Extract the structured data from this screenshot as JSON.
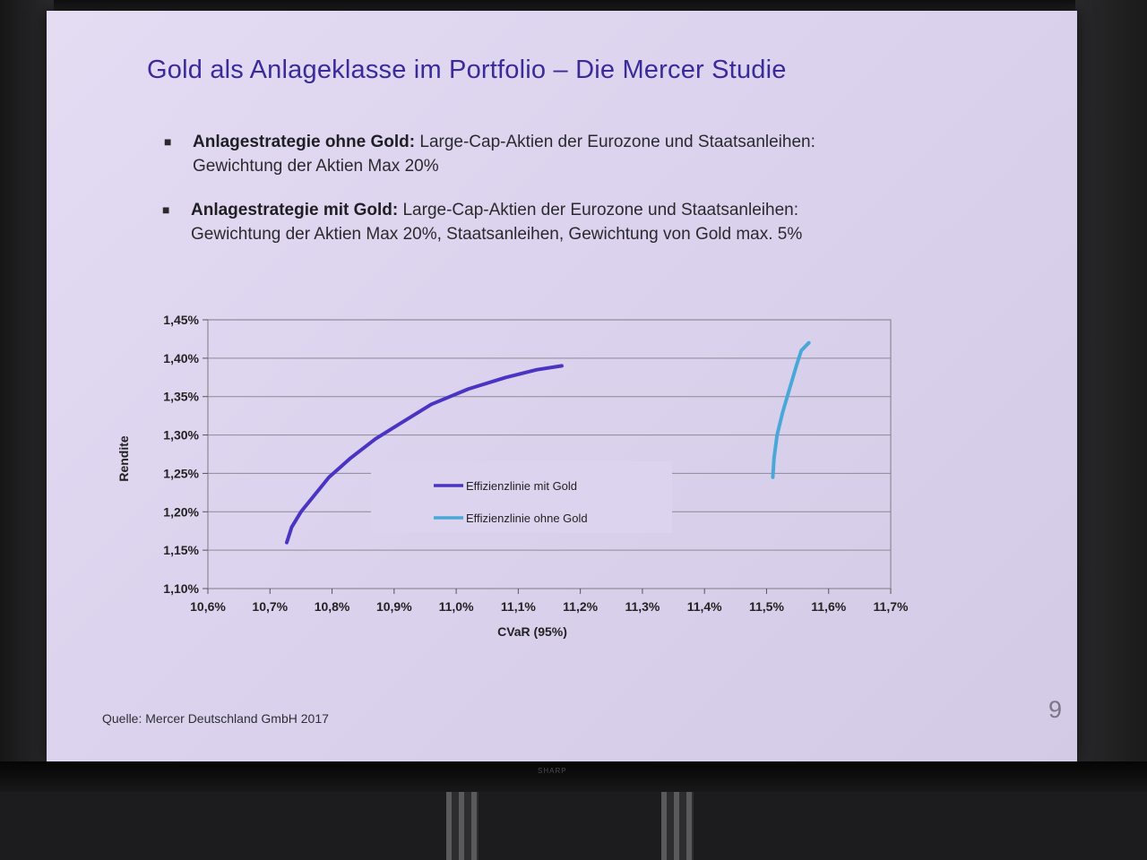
{
  "slide": {
    "title": "Gold als Anlageklasse im Portfolio – Die Mercer Studie",
    "bullets": [
      {
        "bold": "Anlagestrategie ohne Gold:",
        "line1": " Large-Cap-Aktien der Eurozone und Staatsanleihen:",
        "line2": "Gewichtung der Aktien Max 20%"
      },
      {
        "bold": "Anlagestrategie mit Gold:",
        "line1": " Large-Cap-Aktien der Eurozone und Staatsanleihen:",
        "line2": "Gewichtung der Aktien Max 20%, Staatsanleihen, Gewichtung von Gold max. 5%"
      }
    ],
    "source": "Quelle: Mercer Deutschland GmbH 2017",
    "page_number": "9",
    "brand": "SHARP"
  },
  "chart_data": {
    "type": "line",
    "title": "",
    "xlabel": "CVaR (95%)",
    "ylabel": "Rendite",
    "xlim": [
      10.6,
      11.7
    ],
    "ylim": [
      1.1,
      1.45
    ],
    "x_ticks": [
      "10,6%",
      "10,7%",
      "10,8%",
      "10,9%",
      "11,0%",
      "11,1%",
      "11,2%",
      "11,3%",
      "11,4%",
      "11,5%",
      "11,6%",
      "11,7%"
    ],
    "y_ticks": [
      "1,10%",
      "1,15%",
      "1,20%",
      "1,25%",
      "1,30%",
      "1,35%",
      "1,40%",
      "1,45%"
    ],
    "grid": "horizontal",
    "legend_position": "center",
    "series": [
      {
        "name": "Effizienzlinie mit Gold",
        "color": "#4a34c4",
        "points": [
          [
            10.727,
            1.16
          ],
          [
            10.735,
            1.18
          ],
          [
            10.75,
            1.2
          ],
          [
            10.77,
            1.22
          ],
          [
            10.795,
            1.245
          ],
          [
            10.83,
            1.27
          ],
          [
            10.87,
            1.295
          ],
          [
            10.91,
            1.315
          ],
          [
            10.96,
            1.34
          ],
          [
            11.02,
            1.36
          ],
          [
            11.08,
            1.375
          ],
          [
            11.13,
            1.385
          ],
          [
            11.17,
            1.39
          ]
        ]
      },
      {
        "name": "Effizienzlinie ohne Gold",
        "color": "#4aa8d8",
        "points": [
          [
            11.51,
            1.245
          ],
          [
            11.512,
            1.27
          ],
          [
            11.517,
            1.3
          ],
          [
            11.526,
            1.33
          ],
          [
            11.537,
            1.36
          ],
          [
            11.548,
            1.39
          ],
          [
            11.556,
            1.41
          ],
          [
            11.568,
            1.42
          ]
        ]
      }
    ]
  }
}
